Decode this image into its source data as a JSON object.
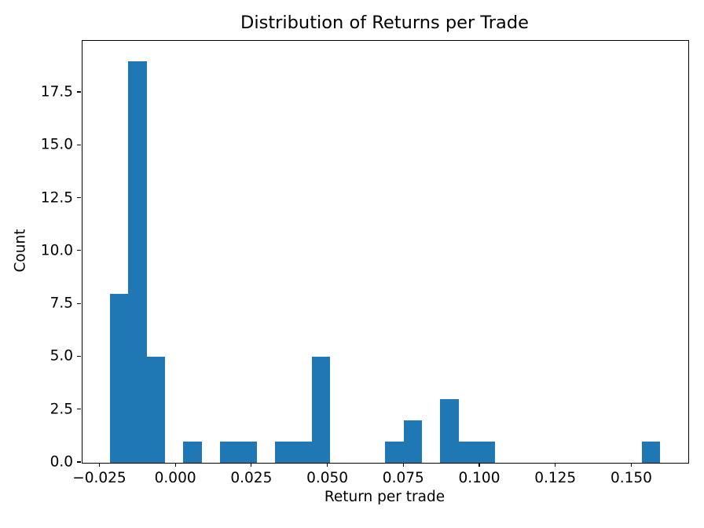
{
  "figure": {
    "title": "Distribution of Returns per Trade",
    "xlabel": "Return per trade",
    "ylabel": "Count"
  },
  "chart_data": {
    "type": "bar",
    "subtype": "histogram",
    "title": "Distribution of Returns per Trade",
    "xlabel": "Return per trade",
    "ylabel": "Count",
    "bar_color": "#1f77b4",
    "background_color": "#ffffff",
    "grid": false,
    "legend": null,
    "bin_edges": [
      -0.0217,
      -0.0157,
      -0.0096,
      -0.0036,
      0.0024,
      0.0085,
      0.0145,
      0.0205,
      0.0266,
      0.0326,
      0.0386,
      0.0447,
      0.0507,
      0.0567,
      0.0628,
      0.0688,
      0.0748,
      0.0809,
      0.0869,
      0.0929,
      0.099,
      0.105,
      0.111,
      0.1171,
      0.1231,
      0.1291,
      0.1352,
      0.1412,
      0.1472,
      0.1533,
      0.1593
    ],
    "counts": [
      8,
      19,
      5,
      0,
      1,
      0,
      1,
      1,
      0,
      1,
      1,
      5,
      0,
      0,
      0,
      1,
      2,
      0,
      3,
      1,
      1,
      0,
      0,
      0,
      0,
      0,
      0,
      0,
      0,
      1
    ],
    "total_count": 51,
    "xlim": [
      -0.0308,
      0.1685
    ],
    "ylim": [
      0,
      19.95
    ],
    "x_ticks": [
      -0.025,
      0.0,
      0.025,
      0.05,
      0.075,
      0.1,
      0.125,
      0.15
    ],
    "x_tick_labels": [
      "−0.025",
      "0.000",
      "0.025",
      "0.050",
      "0.075",
      "0.100",
      "0.125",
      "0.150"
    ],
    "y_ticks": [
      0.0,
      2.5,
      5.0,
      7.5,
      10.0,
      12.5,
      15.0,
      17.5
    ],
    "y_tick_labels": [
      "0.0",
      "2.5",
      "5.0",
      "7.5",
      "10.0",
      "12.5",
      "15.0",
      "17.5"
    ]
  }
}
